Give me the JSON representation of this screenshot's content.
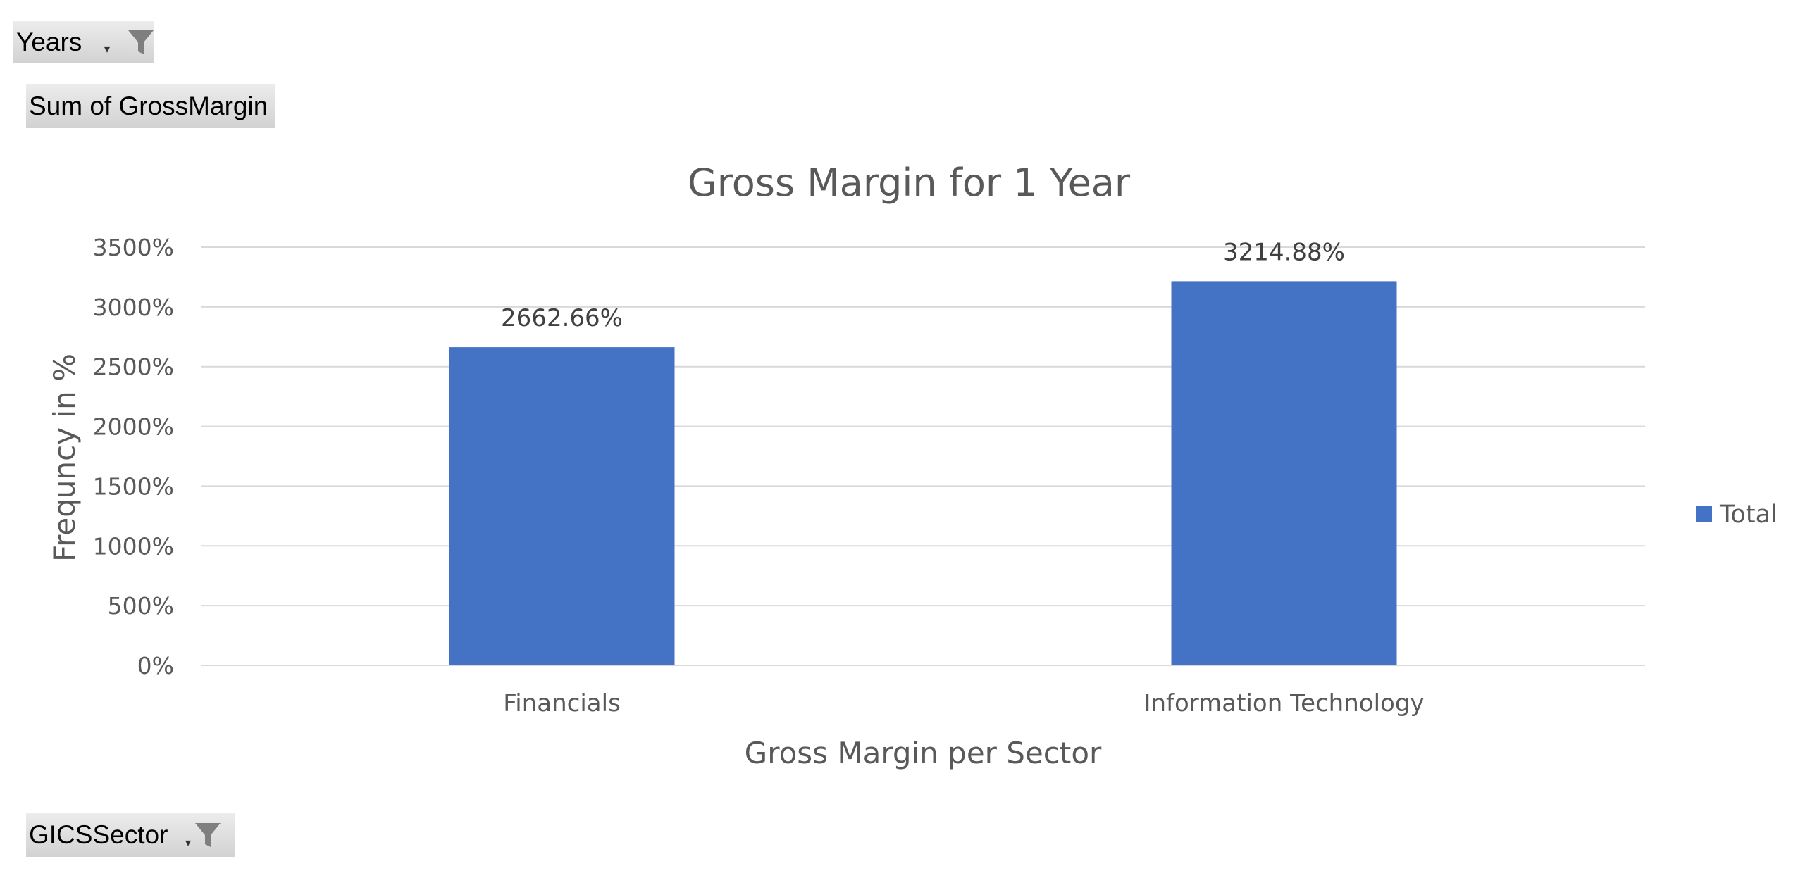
{
  "filters": {
    "years_label": "Years",
    "values_label": "Sum of GrossMargin",
    "sector_label": "GICSSector"
  },
  "colors": {
    "bar": "#4472C4",
    "grid": "#d9d9d9",
    "text": "#595959"
  },
  "chart_data": {
    "type": "bar",
    "title": "Gross Margin for 1 Year",
    "xlabel": "Gross Margin per Sector",
    "ylabel": "Frequncy in %",
    "categories": [
      "Financials",
      "Information Technology"
    ],
    "series": [
      {
        "name": "Total",
        "values": [
          2662.66,
          3214.88
        ],
        "labels": [
          "2662.66%",
          "3214.88%"
        ]
      }
    ],
    "ylim": [
      0,
      3500
    ],
    "yticks": [
      0,
      500,
      1000,
      1500,
      2000,
      2500,
      3000,
      3500
    ],
    "ytick_labels": [
      "0%",
      "500%",
      "1000%",
      "1500%",
      "2000%",
      "2500%",
      "3000%",
      "3500%"
    ],
    "grid": true,
    "legend": "right"
  }
}
